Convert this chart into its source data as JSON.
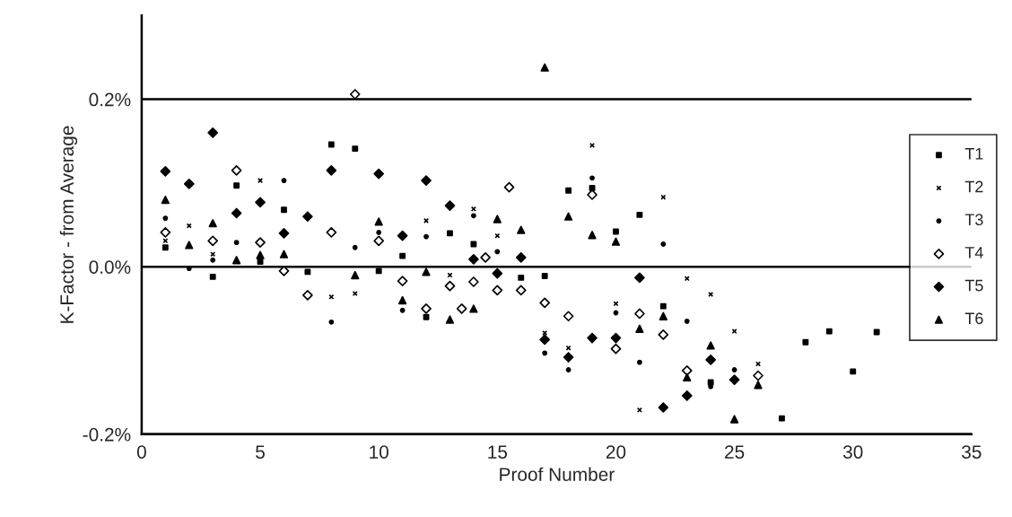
{
  "chart_data": {
    "type": "scatter",
    "xlabel": "Proof Number",
    "ylabel": "K-Factor - from Average",
    "xlim": [
      0,
      35
    ],
    "xticks": [
      0,
      5,
      10,
      15,
      20,
      25,
      30,
      35
    ],
    "ylim": [
      -0.2,
      0.3
    ],
    "yticks": [
      {
        "value": -0.2,
        "label": "-0.2%"
      },
      {
        "value": 0,
        "label": "0.0%"
      },
      {
        "value": 0.2,
        "label": "0.2%"
      }
    ],
    "grid": "y",
    "legend": "right",
    "series": [
      {
        "name": "T1",
        "color": "#000000",
        "marker": "square",
        "x": [
          1,
          2,
          3,
          4,
          5,
          6,
          7,
          8,
          9,
          10,
          11,
          12,
          13,
          14,
          16,
          17,
          18,
          19,
          20,
          21,
          22,
          24,
          27,
          28,
          29,
          30,
          31
        ],
        "values": [
          0.023,
          null,
          -0.012,
          0.097,
          0.006,
          0.068,
          -0.006,
          0.146,
          0.141,
          -0.005,
          0.013,
          -0.06,
          0.04,
          0.027,
          -0.013,
          -0.011,
          0.091,
          0.094,
          0.042,
          0.062,
          -0.047,
          -0.138,
          -0.181,
          -0.09,
          -0.077,
          -0.125,
          -0.078
        ]
      },
      {
        "name": "T2",
        "color": "#000000",
        "marker": "cross",
        "x": [
          1,
          2,
          3,
          5,
          8,
          9,
          12,
          13,
          14,
          15,
          17,
          18,
          19,
          20,
          21,
          22,
          23,
          24,
          25,
          26
        ],
        "values": [
          0.031,
          0.049,
          0.015,
          0.103,
          -0.036,
          -0.032,
          0.055,
          -0.01,
          0.069,
          0.037,
          -0.079,
          -0.097,
          0.145,
          -0.044,
          -0.171,
          0.083,
          -0.014,
          -0.033,
          -0.077,
          -0.116
        ]
      },
      {
        "name": "T3",
        "color": "#000000",
        "marker": "circle",
        "x": [
          1,
          2,
          3,
          4,
          6,
          8,
          9,
          10,
          11,
          12,
          14,
          15,
          17,
          18,
          19,
          20,
          21,
          22,
          23,
          24,
          25
        ],
        "values": [
          0.058,
          -0.002,
          0.008,
          0.029,
          0.103,
          -0.066,
          0.023,
          0.041,
          -0.052,
          0.036,
          0.061,
          0.018,
          -0.103,
          -0.123,
          0.106,
          -0.055,
          -0.114,
          0.027,
          -0.065,
          -0.143,
          -0.123
        ]
      },
      {
        "name": "T4",
        "color": "#ffffff",
        "marker": "diamond",
        "x": [
          1,
          2,
          3,
          4,
          5,
          6,
          7,
          8,
          9,
          10,
          11,
          12,
          13,
          13.5,
          14,
          14.5,
          15,
          15.5,
          16,
          17,
          18,
          19,
          20,
          21,
          22,
          23,
          26
        ],
        "values": [
          0.041,
          null,
          0.031,
          0.115,
          0.029,
          -0.005,
          -0.034,
          0.041,
          0.206,
          0.031,
          -0.017,
          -0.05,
          -0.023,
          -0.05,
          -0.018,
          0.011,
          -0.028,
          0.095,
          -0.028,
          -0.043,
          -0.059,
          0.086,
          -0.098,
          -0.056,
          -0.081,
          -0.124,
          -0.13
        ]
      },
      {
        "name": "T5",
        "color": "#000000",
        "marker": "diamond",
        "x": [
          1,
          2,
          3,
          4,
          5,
          6,
          7,
          8,
          10,
          11,
          12,
          13,
          14,
          15,
          16,
          17,
          18,
          19,
          20,
          21,
          22,
          23,
          24,
          25
        ],
        "values": [
          0.114,
          0.099,
          0.16,
          0.064,
          0.077,
          0.04,
          0.06,
          0.115,
          0.111,
          0.037,
          0.103,
          0.073,
          0.009,
          -0.008,
          0.011,
          -0.087,
          -0.108,
          -0.085,
          -0.085,
          -0.013,
          -0.168,
          -0.154,
          -0.111,
          -0.135
        ]
      },
      {
        "name": "T6",
        "color": "#000000",
        "marker": "triangle",
        "x": [
          1,
          2,
          3,
          4,
          5,
          6,
          9,
          10,
          11,
          12,
          13,
          14,
          15,
          16,
          17,
          18,
          19,
          20,
          21,
          22,
          23,
          24,
          25,
          26
        ],
        "values": [
          0.08,
          0.026,
          0.052,
          0.008,
          0.014,
          0.015,
          -0.01,
          0.054,
          -0.04,
          -0.006,
          -0.063,
          -0.05,
          0.057,
          0.044,
          0.238,
          0.06,
          0.038,
          0.03,
          -0.074,
          -0.059,
          -0.132,
          -0.094,
          -0.182,
          -0.141
        ]
      }
    ]
  }
}
